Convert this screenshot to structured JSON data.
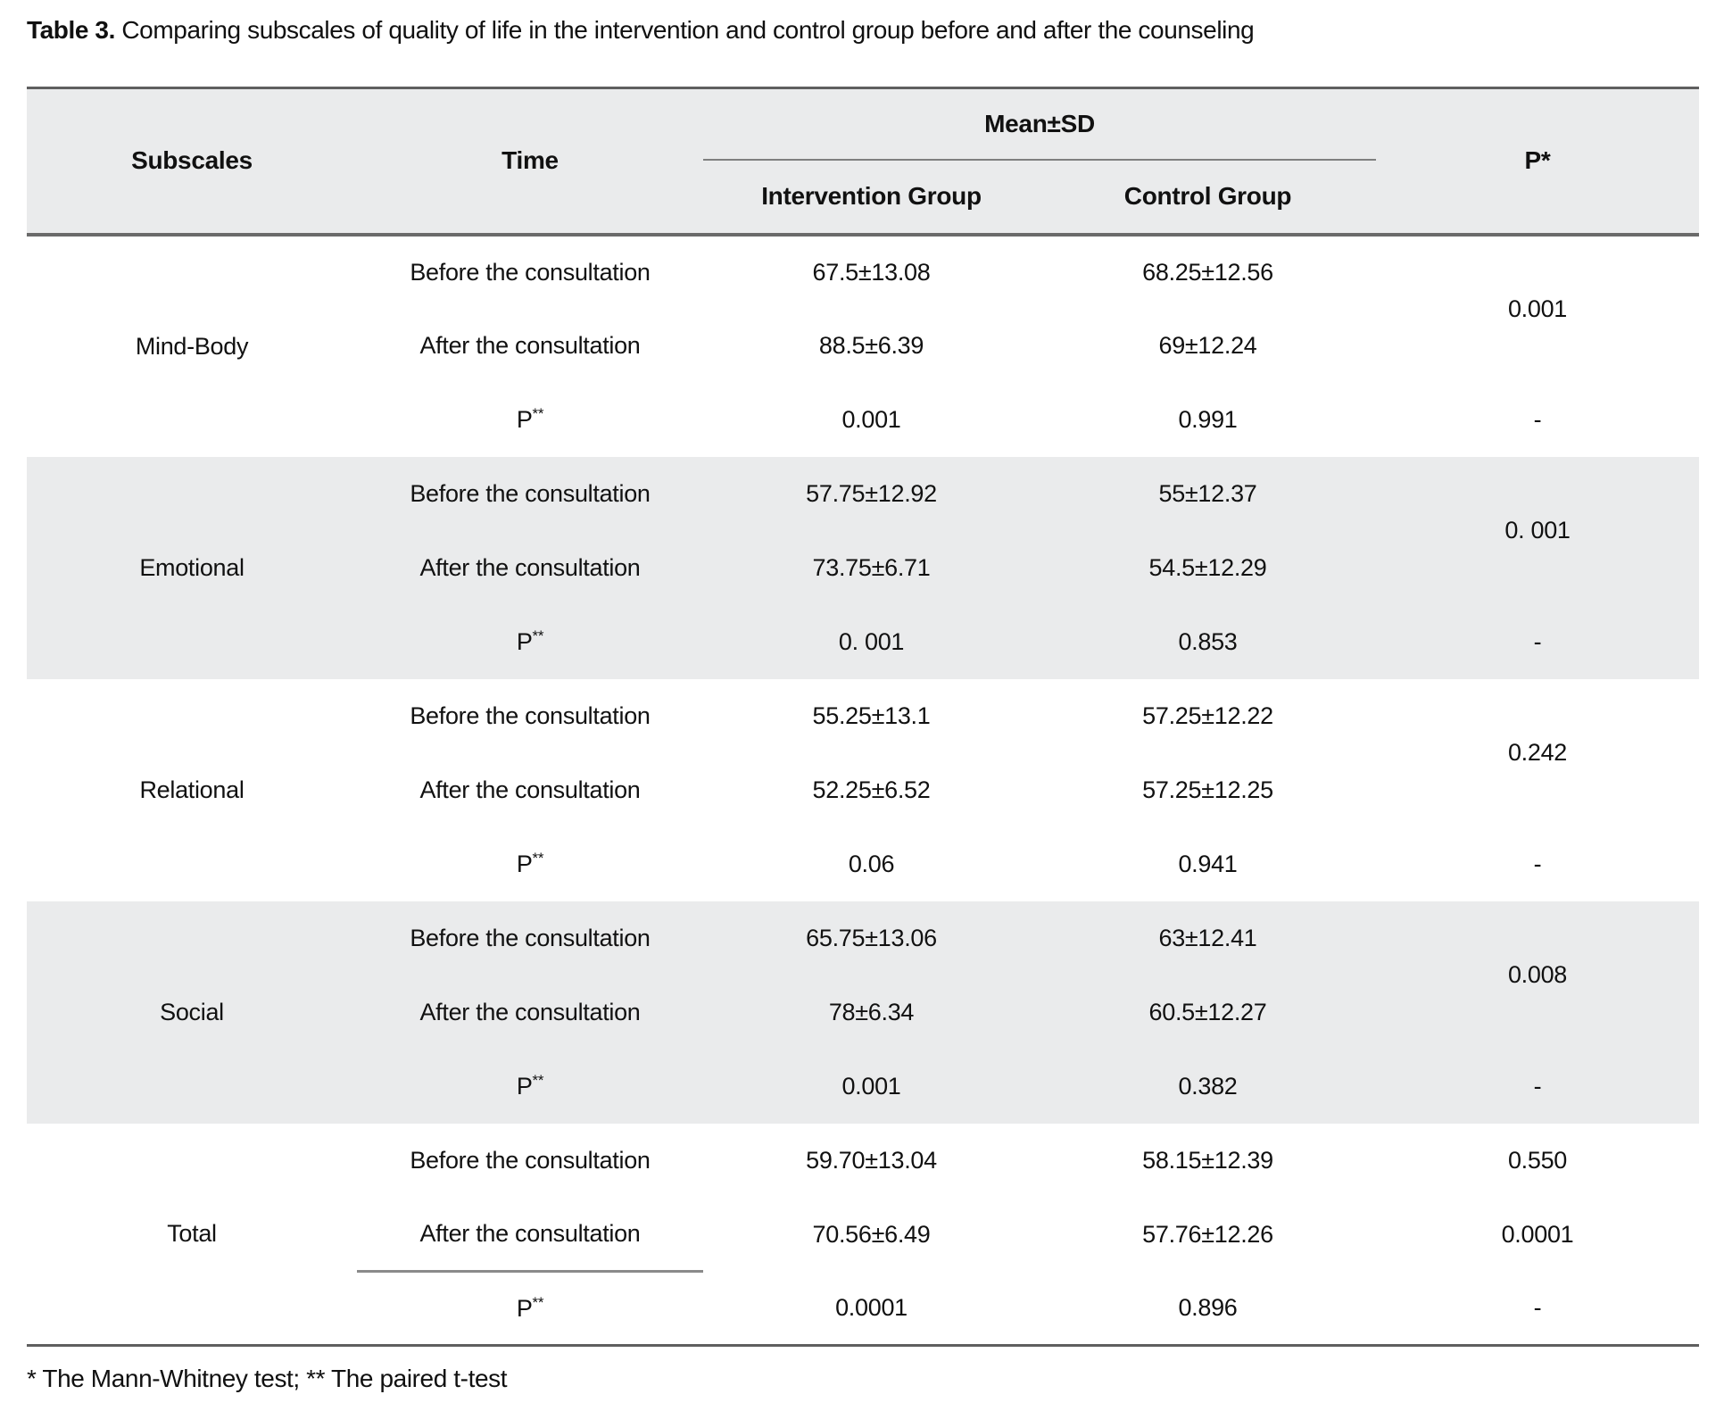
{
  "title": {
    "label": "Table 3.",
    "text": " Comparing subscales of quality of life in the intervention and control group before and after the counseling"
  },
  "table": {
    "headers": {
      "subscales": "Subscales",
      "time": "Time",
      "mean_sd": "Mean±SD",
      "intervention": "Intervention Group",
      "control": "Control Group",
      "p": "P*"
    },
    "labels": {
      "before": "Before the consultation",
      "after": "After the consultation"
    },
    "p_label": {
      "base": "P",
      "sup": "**"
    },
    "blocks": [
      {
        "subscale": "Mind-Body",
        "before": {
          "intervention": "67.5±13.08",
          "control": "68.25±12.56"
        },
        "after": {
          "intervention": "88.5±6.39",
          "control": "69±12.24"
        },
        "p_between": "0.001",
        "p_row": {
          "intervention": "0.001",
          "control": "0.991",
          "p": "-"
        }
      },
      {
        "subscale": "Emotional",
        "before": {
          "intervention": "57.75±12.92",
          "control": "55±12.37"
        },
        "after": {
          "intervention": "73.75±6.71",
          "control": "54.5±12.29"
        },
        "p_between": "0. 001",
        "p_row": {
          "intervention": "0. 001",
          "control": "0.853",
          "p": "-"
        }
      },
      {
        "subscale": "Relational",
        "before": {
          "intervention": "55.25±13.1",
          "control": "57.25±12.22"
        },
        "after": {
          "intervention": "52.25±6.52",
          "control": "57.25±12.25"
        },
        "p_between": "0.242",
        "p_row": {
          "intervention": "0.06",
          "control": "0.941",
          "p": "-"
        }
      },
      {
        "subscale": "Social",
        "before": {
          "intervention": "65.75±13.06",
          "control": "63±12.41"
        },
        "after": {
          "intervention": "78±6.34",
          "control": "60.5±12.27"
        },
        "p_between": "0.008",
        "p_row": {
          "intervention": "0.001",
          "control": "0.382",
          "p": "-"
        }
      },
      {
        "subscale": "Total",
        "before": {
          "intervention": "59.70±13.04",
          "control": "58.15±12.39"
        },
        "after": {
          "intervention": "70.56±6.49",
          "control": "57.76±12.26"
        },
        "p_before": "0.550",
        "p_after": "0.0001",
        "p_row": {
          "intervention": "0.0001",
          "control": "0.896",
          "p": "-"
        }
      }
    ]
  },
  "footnote": "* The Mann-Whitney test; ** The paired t-test"
}
